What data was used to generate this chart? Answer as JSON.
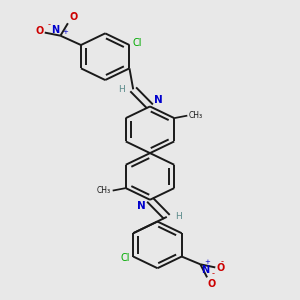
{
  "bg_color": "#e8e8e8",
  "bond_color": "#1a1a1a",
  "n_color": "#0000cc",
  "o_color": "#cc0000",
  "cl_color": "#00aa00",
  "h_color": "#5a8a8a",
  "lw": 1.4,
  "ring_r": 0.075,
  "fig_w": 3.0,
  "fig_h": 3.0,
  "dpi": 100,
  "xlim": [
    0.1,
    0.9
  ],
  "ylim": [
    0.02,
    0.98
  ]
}
